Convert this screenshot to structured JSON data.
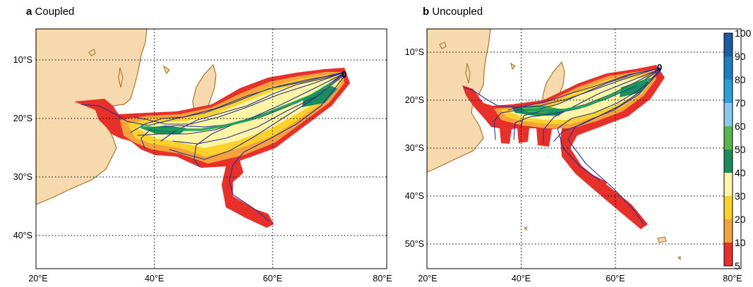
{
  "panels": [
    {
      "letter": "a",
      "title": "Coupled"
    },
    {
      "letter": "b",
      "title": "Uncoupled"
    }
  ],
  "axes": {
    "lon_ticks": [
      "20°E",
      "40°E",
      "60°E",
      "80°E"
    ],
    "lat_ticks_a": [
      "10°S",
      "20°S",
      "30°S",
      "40°S"
    ],
    "lat_ticks_b": [
      "10°S",
      "20°S",
      "30°S",
      "40°S",
      "50°S"
    ]
  },
  "origin_label": "0",
  "colorbar": {
    "labels": [
      "100",
      "90",
      "80",
      "70",
      "60",
      "50",
      "40",
      "30",
      "20",
      "10",
      "5"
    ],
    "colors": [
      "#1f5aa6",
      "#1a7fc2",
      "#2a9fdc",
      "#8cc8ea",
      "#5ab54a",
      "#1b8d5c",
      "#fdf5a5",
      "#fbd22c",
      "#f5a13c",
      "#e8302b"
    ]
  },
  "density_colors": {
    "outer": "#e8302b",
    "level10": "#f5a13c",
    "level20": "#fbd22c",
    "level30": "#fdf5a5",
    "level40": "#1b8d5c",
    "level50": "#5ab54a"
  },
  "land_color": "#f7d9ae",
  "coast_color": "#b0742c",
  "track_color": "#2b2f8e"
}
